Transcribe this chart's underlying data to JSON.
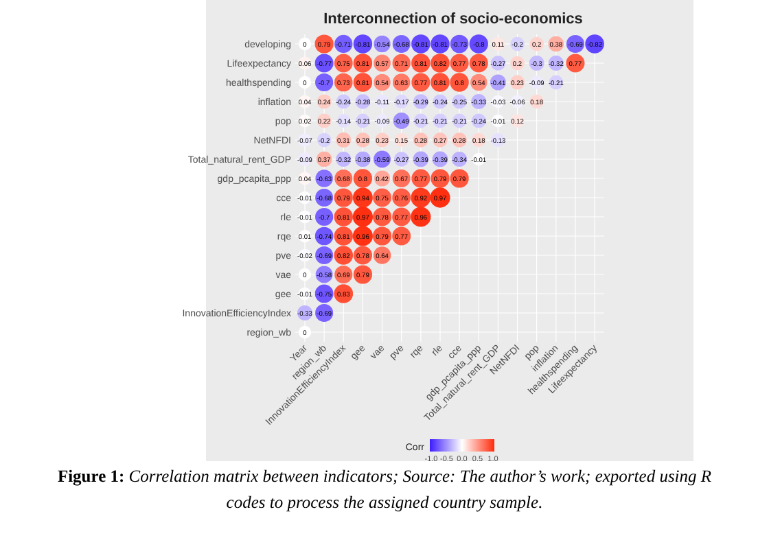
{
  "chart_data": {
    "type": "heatmap",
    "title": "Interconnection of socio-economics",
    "categories": [
      "Year",
      "region_wb",
      "InnovationEfficiencyIndex",
      "gee",
      "vae",
      "pve",
      "rqe",
      "rle",
      "cce",
      "gdp_pcapita_ppp",
      "Total_natural_rent_GDP",
      "NetNFDI",
      "pop",
      "inflation",
      "healthspending",
      "Lifeexpectancy"
    ],
    "y_categories": [
      "developing",
      "Lifeexpectancy",
      "healthspending",
      "inflation",
      "pop",
      "NetNFDI",
      "Total_natural_rent_GDP",
      "gdp_pcapita_ppp",
      "cce",
      "rle",
      "rqe",
      "pve",
      "vae",
      "gee",
      "InnovationEfficiencyIndex",
      "region_wb"
    ],
    "cells": [
      [
        0,
        0.79,
        -0.71,
        -0.81,
        -0.54,
        -0.68,
        -0.81,
        -0.81,
        -0.73,
        -0.8,
        0.11,
        -0.2,
        0.2,
        0.38,
        -0.69,
        -0.82
      ],
      [
        0.06,
        -0.77,
        0.75,
        0.81,
        0.57,
        0.71,
        0.81,
        0.82,
        0.77,
        0.78,
        -0.27,
        0.2,
        -0.3,
        -0.32,
        0.77,
        null
      ],
      [
        0,
        -0.7,
        0.73,
        0.81,
        0.54,
        0.63,
        0.77,
        0.81,
        0.8,
        0.54,
        -0.41,
        0.23,
        -0.09,
        -0.21,
        null,
        null
      ],
      [
        0.04,
        0.24,
        -0.24,
        -0.28,
        -0.11,
        -0.17,
        -0.29,
        -0.24,
        -0.25,
        -0.33,
        -0.03,
        -0.06,
        0.18,
        null,
        null,
        null
      ],
      [
        0.02,
        0.22,
        -0.14,
        -0.21,
        -0.09,
        -0.49,
        -0.21,
        -0.21,
        -0.21,
        -0.24,
        -0.01,
        0.12,
        null,
        null,
        null,
        null
      ],
      [
        -0.07,
        -0.2,
        0.31,
        0.28,
        0.23,
        0.15,
        0.28,
        0.27,
        0.28,
        0.18,
        -0.13,
        null,
        null,
        null,
        null,
        null
      ],
      [
        -0.09,
        0.37,
        -0.32,
        -0.38,
        -0.59,
        -0.27,
        -0.39,
        -0.39,
        -0.34,
        -0.01,
        null,
        null,
        null,
        null,
        null,
        null
      ],
      [
        0.04,
        -0.63,
        0.68,
        0.8,
        0.42,
        0.67,
        0.77,
        0.79,
        0.79,
        null,
        null,
        null,
        null,
        null,
        null,
        null
      ],
      [
        -0.01,
        -0.68,
        0.79,
        0.94,
        0.75,
        0.76,
        0.92,
        0.97,
        null,
        null,
        null,
        null,
        null,
        null,
        null,
        null
      ],
      [
        -0.01,
        -0.7,
        0.81,
        0.97,
        0.78,
        0.77,
        0.96,
        null,
        null,
        null,
        null,
        null,
        null,
        null,
        null,
        null
      ],
      [
        0.01,
        -0.74,
        0.81,
        0.96,
        0.79,
        0.77,
        null,
        null,
        null,
        null,
        null,
        null,
        null,
        null,
        null,
        null
      ],
      [
        -0.02,
        -0.69,
        0.82,
        0.78,
        0.64,
        null,
        null,
        null,
        null,
        null,
        null,
        null,
        null,
        null,
        null,
        null
      ],
      [
        0,
        -0.58,
        0.69,
        0.79,
        null,
        null,
        null,
        null,
        null,
        null,
        null,
        null,
        null,
        null,
        null,
        null
      ],
      [
        -0.01,
        -0.75,
        0.83,
        null,
        null,
        null,
        null,
        null,
        null,
        null,
        null,
        null,
        null,
        null,
        null,
        null
      ],
      [
        -0.33,
        -0.69,
        null,
        null,
        null,
        null,
        null,
        null,
        null,
        null,
        null,
        null,
        null,
        null,
        null,
        null
      ],
      [
        0,
        null,
        null,
        null,
        null,
        null,
        null,
        null,
        null,
        null,
        null,
        null,
        null,
        null,
        null,
        null
      ]
    ],
    "clabel": "Corr",
    "clim": [
      -1,
      1
    ],
    "cticks": [
      {
        "value": -1,
        "label": "-1.0"
      },
      {
        "value": -0.5,
        "label": "-0.5"
      },
      {
        "value": 0,
        "label": "0.0"
      },
      {
        "value": 0.5,
        "label": "0.5"
      },
      {
        "value": 1,
        "label": "1.0"
      }
    ],
    "data_labels": true,
    "grid": true,
    "annotations": [
      "Figure 1: Correlation matrix between indicators; Source: The author’s work; exported using R codes to process the assigned country sample."
    ]
  }
}
